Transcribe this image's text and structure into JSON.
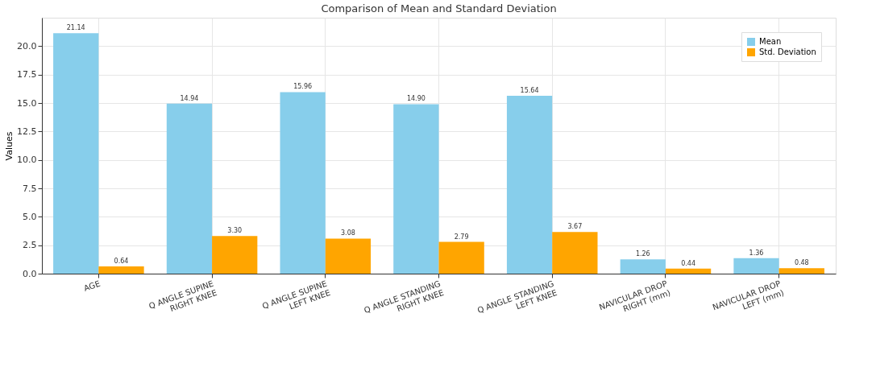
{
  "chart_data": {
    "type": "bar",
    "title": "Comparison of Mean and Standard Deviation",
    "ylabel": "Values",
    "categories": [
      "AGE",
      "Q ANGLE SUPINE\nRIGHT KNEE",
      "Q ANGLE SUPINE\nLEFT KNEE",
      "Q ANGLE STANDING\nRIGHT KNEE",
      "Q ANGLE STANDING\nLEFT KNEE",
      "NAVICULAR DROP\nRIGHT (mm)",
      "NAVICULAR DROP\nLEFT (mm)"
    ],
    "series": [
      {
        "name": "Mean",
        "color": "#87ceeb",
        "values": [
          21.14,
          14.94,
          15.96,
          14.9,
          15.64,
          1.26,
          1.36
        ],
        "value_labels": [
          "21.14",
          "14.94",
          "15.96",
          "14.90",
          "15.64",
          "1.26",
          "1.36"
        ]
      },
      {
        "name": "Std. Deviation",
        "color": "#ffa500",
        "values": [
          0.64,
          3.3,
          3.08,
          2.79,
          3.67,
          0.44,
          0.48
        ],
        "value_labels": [
          "0.64",
          "3.30",
          "3.08",
          "2.79",
          "3.67",
          "0.44",
          "0.48"
        ]
      }
    ],
    "ylim": [
      0,
      22.5
    ],
    "yticks": [
      {
        "value": 0,
        "label": "0.0"
      },
      {
        "value": 2.5,
        "label": "2.5"
      },
      {
        "value": 5,
        "label": "5.0"
      },
      {
        "value": 7.5,
        "label": "7.5"
      },
      {
        "value": 10,
        "label": "10.0"
      },
      {
        "value": 12.5,
        "label": "12.5"
      },
      {
        "value": 15,
        "label": "15.0"
      },
      {
        "value": 17.5,
        "label": "17.5"
      },
      {
        "value": 20,
        "label": "20.0"
      }
    ],
    "grid": true,
    "legend": "top right"
  }
}
